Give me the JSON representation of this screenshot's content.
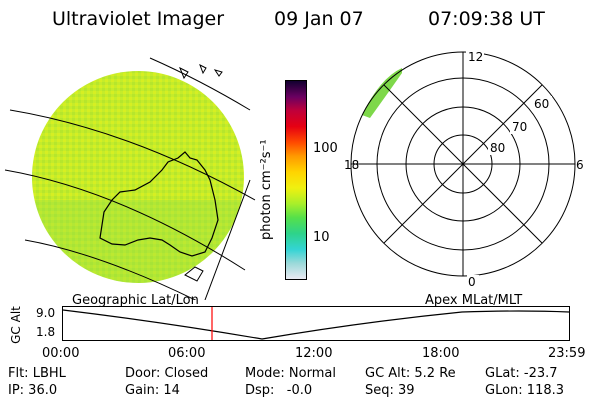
{
  "header": {
    "title": "Ultraviolet Imager",
    "date": "09 Jan 07",
    "time": "07:09:38 UT"
  },
  "colorbar": {
    "label": "photon cm⁻²s⁻¹",
    "ticks": [
      "100",
      "10"
    ],
    "colors": [
      "#e9e9f2",
      "#9ad9d9",
      "#33d4d4",
      "#2ed38a",
      "#55e04a",
      "#a9ef2a",
      "#f0f010",
      "#ffd400",
      "#ff9a00",
      "#ff4a00",
      "#e60012",
      "#c0003a",
      "#6a0061",
      "#120030"
    ]
  },
  "polar_plot": {
    "mlt_labels": [
      "12",
      "6",
      "0",
      "18"
    ],
    "lat_labels": [
      "60",
      "70",
      "80"
    ]
  },
  "map_labels": {
    "geographic": "Geographic Lat/Lon",
    "apex": "Apex MLat/MLT"
  },
  "altitude_plot": {
    "axis_label": "GC Alt",
    "y_ticks": [
      "9.0",
      "1.8"
    ],
    "x_ticks": [
      "00:00",
      "06:00",
      "12:00",
      "18:00",
      "23:59"
    ]
  },
  "info": {
    "filter": "Flt: LBHL",
    "door": "Door: Closed",
    "mode": "Mode: Normal",
    "gc_alt": "GC Alt: 5.2 Re",
    "glat": "GLat: -23.7",
    "ip": "IP: 36.0",
    "gain": "Gain: 14",
    "dsp": "Dsp:   -0.0",
    "seq": "Seq: 39",
    "glon": "GLon: 118.3"
  }
}
